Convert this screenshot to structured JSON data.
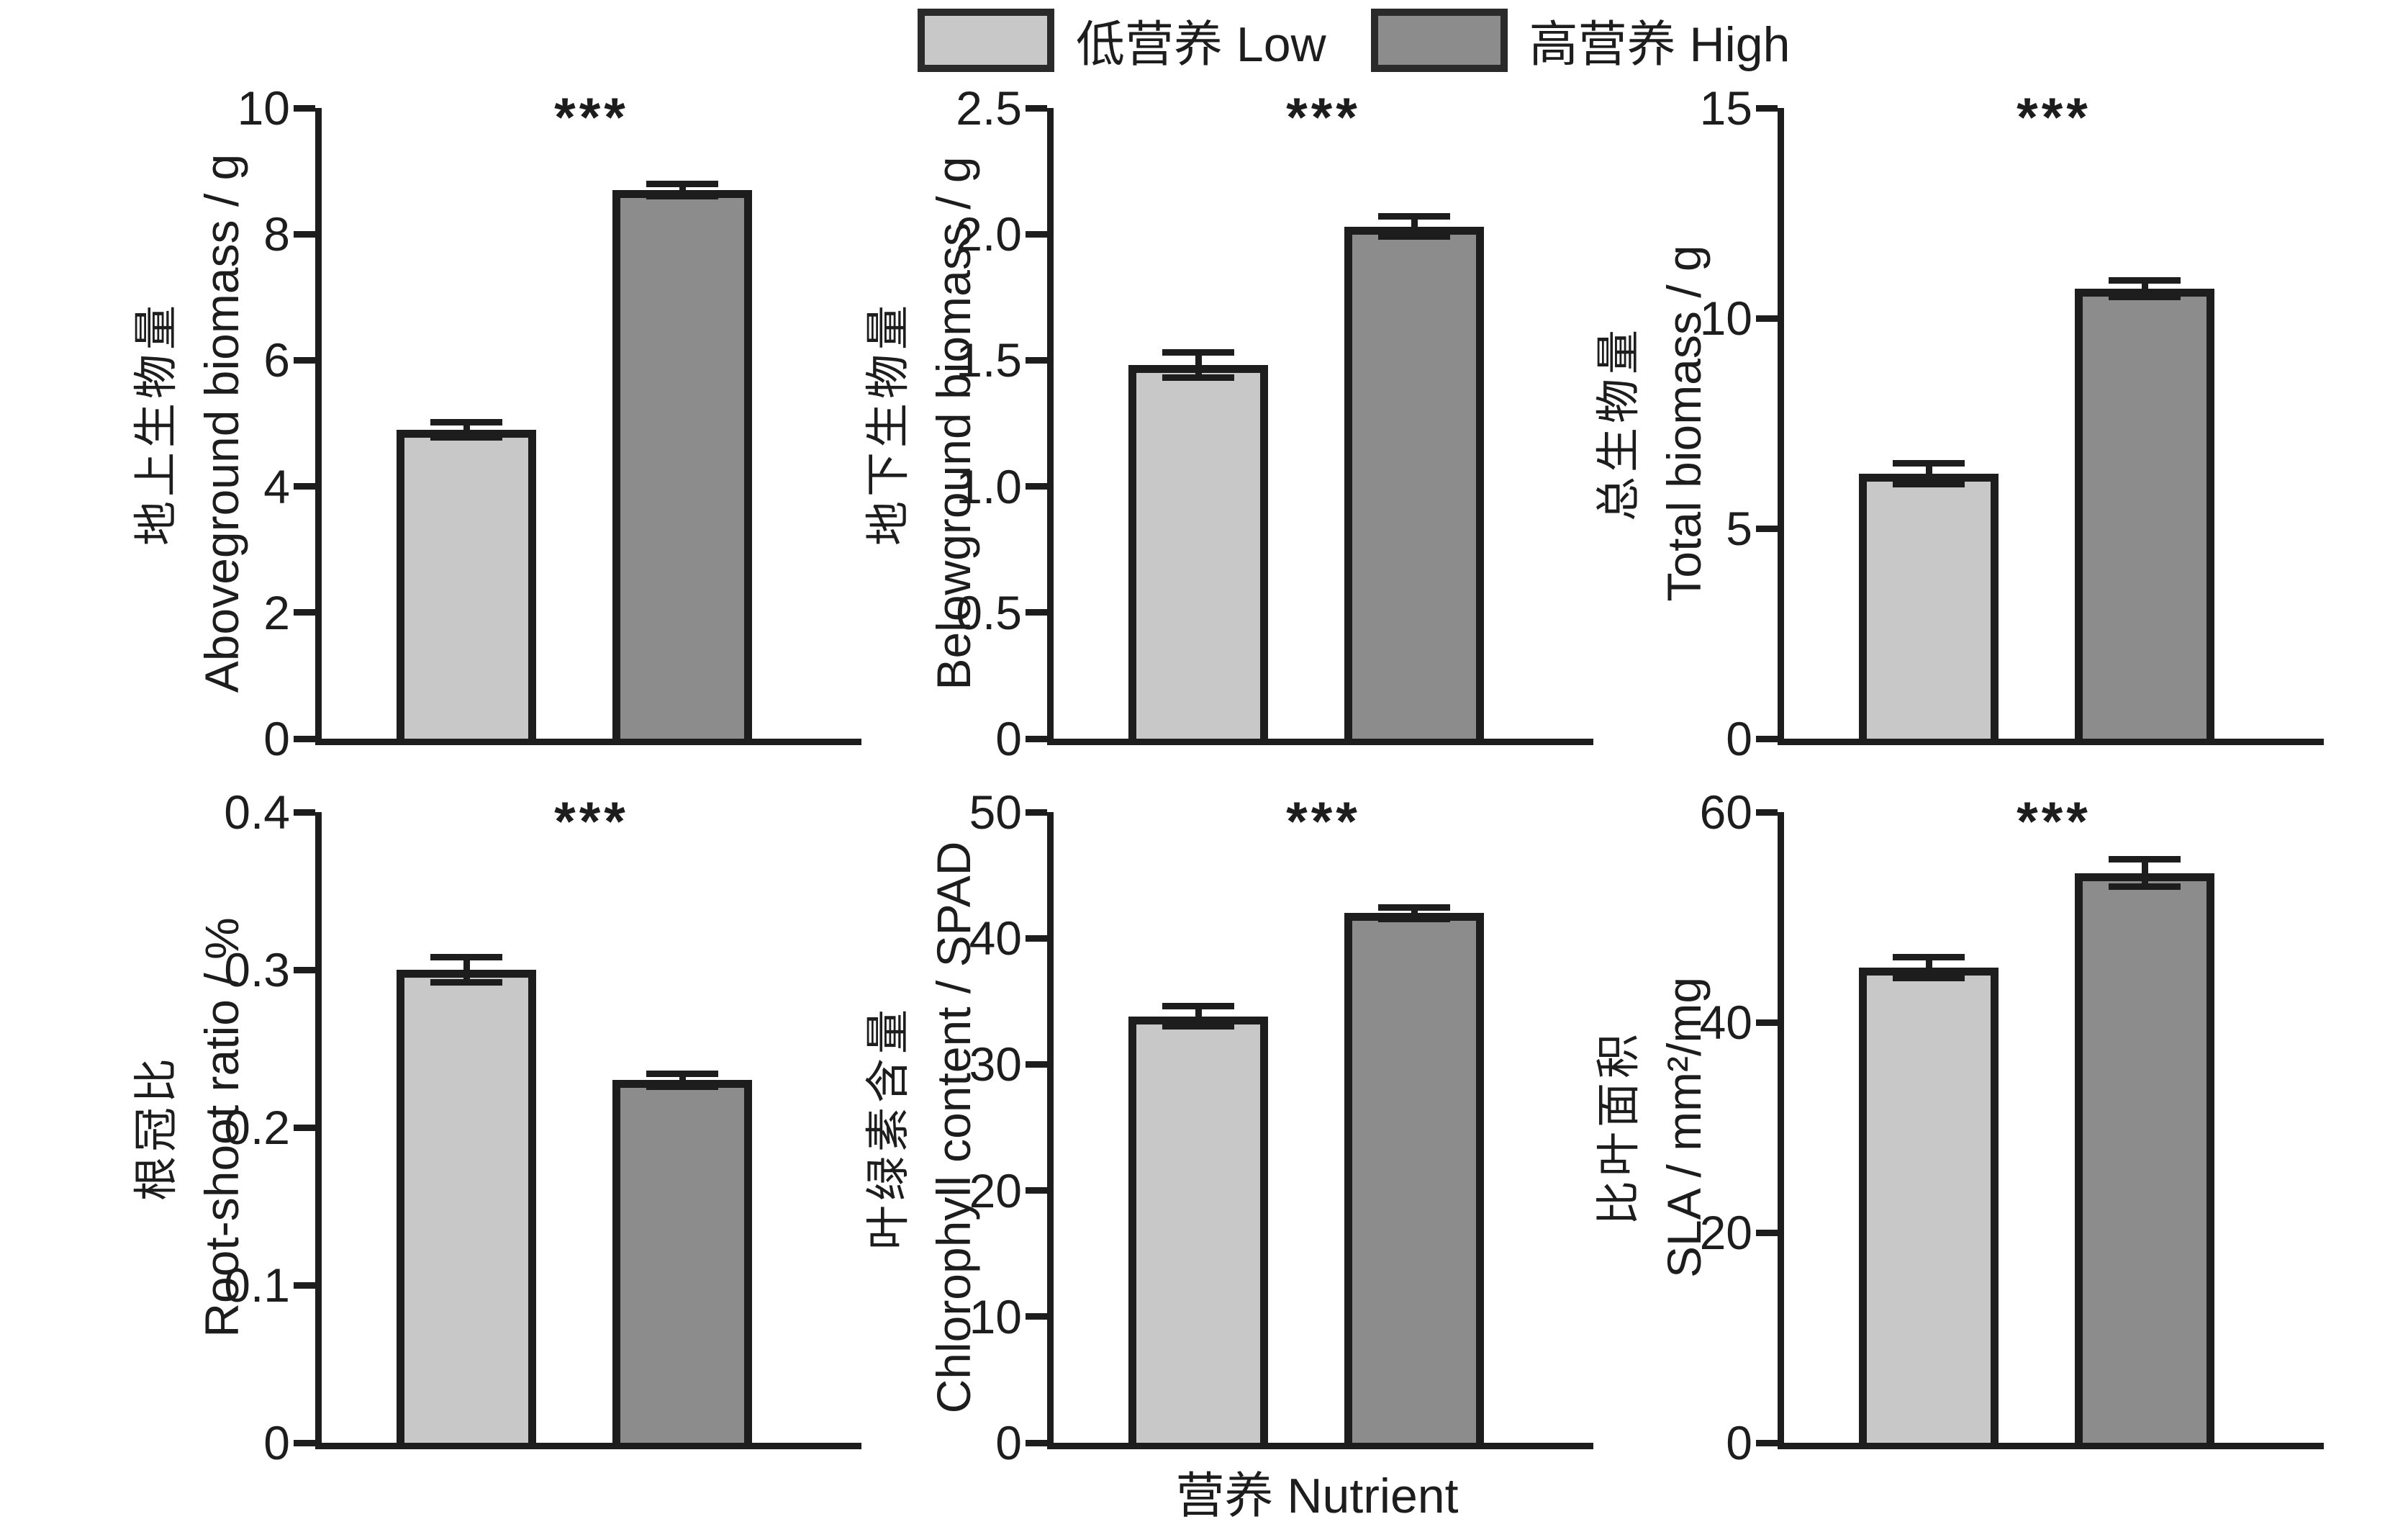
{
  "legend": {
    "items": [
      {
        "label": "低营养 Low",
        "color": "#c8c8c8"
      },
      {
        "label": "高营养 High",
        "color": "#8c8c8c"
      }
    ]
  },
  "xlabel": "营养 Nutrient",
  "ink_color": "#1d1d1d",
  "chart_data": [
    {
      "type": "bar",
      "title_cn": "地上生物量",
      "ylabel": "Aboveground biomass / g",
      "categories": [
        "低营养 Low",
        "高营养 High"
      ],
      "values": [
        4.9,
        8.7
      ],
      "errors": [
        0.12,
        0.1
      ],
      "ylim": [
        0,
        10
      ],
      "yticks": [
        0,
        2,
        4,
        6,
        8,
        10
      ],
      "ytick_labels": [
        "0",
        "2",
        "4",
        "6",
        "8",
        "10"
      ],
      "significance": "***",
      "legend_position": "top-center",
      "grid": false
    },
    {
      "type": "bar",
      "title_cn": "地下生物量",
      "ylabel": "Belowground biomass / g",
      "categories": [
        "低营养 Low",
        "高营养 High"
      ],
      "values": [
        1.48,
        2.03
      ],
      "errors": [
        0.05,
        0.04
      ],
      "ylim": [
        0,
        2.5
      ],
      "yticks": [
        0,
        0.5,
        1.0,
        1.5,
        2.0,
        2.5
      ],
      "ytick_labels": [
        "0",
        "0.5",
        "1.0",
        "1.5",
        "2.0",
        "2.5"
      ],
      "significance": "***",
      "grid": false
    },
    {
      "type": "bar",
      "title_cn": "总生物量",
      "ylabel": "Total biomass / g",
      "categories": [
        "低营养 Low",
        "高营养 High"
      ],
      "values": [
        6.3,
        10.7
      ],
      "errors": [
        0.25,
        0.2
      ],
      "ylim": [
        0,
        15
      ],
      "yticks": [
        0,
        5,
        10,
        15
      ],
      "ytick_labels": [
        "0",
        "5",
        "10",
        "15"
      ],
      "significance": "***",
      "grid": false
    },
    {
      "type": "bar",
      "title_cn": "根冠比",
      "ylabel": "Root-shoot ratio / %",
      "categories": [
        "低营养 Low",
        "高营养 High"
      ],
      "values": [
        0.3,
        0.23
      ],
      "errors": [
        0.008,
        0.004
      ],
      "ylim": [
        0,
        0.4
      ],
      "yticks": [
        0,
        0.1,
        0.2,
        0.3,
        0.4
      ],
      "ytick_labels": [
        "0",
        "0.1",
        "0.2",
        "0.3",
        "0.4"
      ],
      "significance": "***",
      "grid": false
    },
    {
      "type": "bar",
      "title_cn": "叶绿素含量",
      "ylabel": "Chlorophyll content / SPAD",
      "categories": [
        "低营养 Low",
        "高营养 High"
      ],
      "values": [
        33.8,
        42.0
      ],
      "errors": [
        0.8,
        0.45
      ],
      "ylim": [
        0,
        50
      ],
      "yticks": [
        0,
        10,
        20,
        30,
        40,
        50
      ],
      "ytick_labels": [
        "0",
        "10",
        "20",
        "30",
        "40",
        "50"
      ],
      "significance": "***",
      "grid": false
    },
    {
      "type": "bar",
      "title_cn": "比叶面积",
      "ylabel": "SLA / mm²/mg",
      "categories": [
        "低营养 Low",
        "高营养 High"
      ],
      "values": [
        45.2,
        54.2
      ],
      "errors": [
        1.0,
        1.3
      ],
      "ylim": [
        0,
        60
      ],
      "yticks": [
        0,
        20,
        40,
        60
      ],
      "ytick_labels": [
        "0",
        "20",
        "40",
        "60"
      ],
      "significance": "***",
      "grid": false
    }
  ]
}
